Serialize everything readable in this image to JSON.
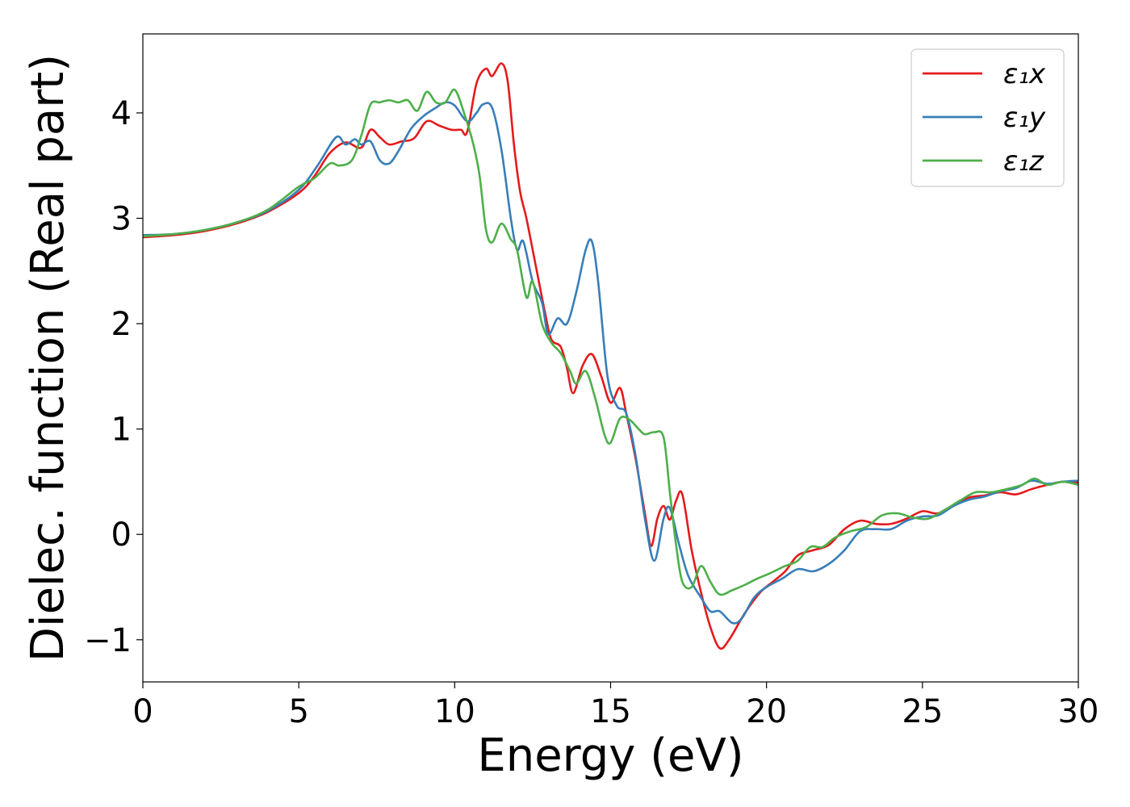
{
  "chart_data": {
    "type": "line",
    "title": "",
    "xlabel": "Energy (eV)",
    "ylabel": "Dielec. function (Real part)",
    "xlim": [
      0,
      30
    ],
    "ylim": [
      -1.4,
      4.75
    ],
    "xticks": [
      0,
      5,
      10,
      15,
      20,
      25,
      30
    ],
    "xtick_labels": [
      "0",
      "5",
      "10",
      "15",
      "20",
      "25",
      "30"
    ],
    "yticks": [
      -1,
      0,
      1,
      2,
      3,
      4
    ],
    "ytick_labels": [
      "−1",
      "0",
      "1",
      "2",
      "3",
      "4"
    ],
    "grid": false,
    "legend_position": "top-right",
    "series": [
      {
        "name": "ε₁x",
        "color": "#e41a1c",
        "points": [
          [
            0,
            2.82
          ],
          [
            1,
            2.84
          ],
          [
            2,
            2.88
          ],
          [
            3,
            2.95
          ],
          [
            4,
            3.06
          ],
          [
            5,
            3.24
          ],
          [
            5.5,
            3.4
          ],
          [
            6,
            3.62
          ],
          [
            6.5,
            3.72
          ],
          [
            7,
            3.67
          ],
          [
            7.3,
            3.84
          ],
          [
            7.6,
            3.77
          ],
          [
            7.9,
            3.7
          ],
          [
            8.3,
            3.73
          ],
          [
            8.7,
            3.76
          ],
          [
            9.1,
            3.92
          ],
          [
            9.5,
            3.88
          ],
          [
            9.9,
            3.84
          ],
          [
            10.2,
            3.84
          ],
          [
            10.4,
            3.82
          ],
          [
            10.7,
            4.28
          ],
          [
            11,
            4.42
          ],
          [
            11.2,
            4.35
          ],
          [
            11.5,
            4.47
          ],
          [
            11.7,
            4.3
          ],
          [
            11.9,
            3.7
          ],
          [
            12.1,
            3.25
          ],
          [
            12.3,
            3.0
          ],
          [
            12.6,
            2.55
          ],
          [
            12.9,
            2.1
          ],
          [
            13.1,
            1.85
          ],
          [
            13.4,
            1.78
          ],
          [
            13.6,
            1.58
          ],
          [
            13.8,
            1.34
          ],
          [
            14.1,
            1.6
          ],
          [
            14.4,
            1.71
          ],
          [
            14.7,
            1.5
          ],
          [
            15,
            1.25
          ],
          [
            15.3,
            1.39
          ],
          [
            15.5,
            1.15
          ],
          [
            15.8,
            0.72
          ],
          [
            16.1,
            0.2
          ],
          [
            16.3,
            -0.11
          ],
          [
            16.5,
            0.15
          ],
          [
            16.7,
            0.27
          ],
          [
            16.9,
            0.14
          ],
          [
            17.1,
            0.32
          ],
          [
            17.3,
            0.38
          ],
          [
            17.6,
            -0.15
          ],
          [
            17.9,
            -0.55
          ],
          [
            18.2,
            -0.88
          ],
          [
            18.5,
            -1.08
          ],
          [
            18.8,
            -1.0
          ],
          [
            19.3,
            -0.75
          ],
          [
            19.8,
            -0.55
          ],
          [
            20.2,
            -0.45
          ],
          [
            20.6,
            -0.35
          ],
          [
            21,
            -0.2
          ],
          [
            21.5,
            -0.15
          ],
          [
            22,
            -0.1
          ],
          [
            22.5,
            0.05
          ],
          [
            23,
            0.13
          ],
          [
            23.5,
            0.1
          ],
          [
            24,
            0.1
          ],
          [
            24.5,
            0.15
          ],
          [
            25,
            0.22
          ],
          [
            25.5,
            0.2
          ],
          [
            26,
            0.28
          ],
          [
            26.5,
            0.35
          ],
          [
            27,
            0.37
          ],
          [
            27.5,
            0.4
          ],
          [
            28,
            0.38
          ],
          [
            28.5,
            0.43
          ],
          [
            29,
            0.47
          ],
          [
            29.5,
            0.5
          ],
          [
            30,
            0.49
          ]
        ]
      },
      {
        "name": "ε₁y",
        "color": "#377eb8",
        "points": [
          [
            0,
            2.84
          ],
          [
            1,
            2.85
          ],
          [
            2,
            2.89
          ],
          [
            3,
            2.96
          ],
          [
            4,
            3.07
          ],
          [
            5,
            3.27
          ],
          [
            5.6,
            3.5
          ],
          [
            6.2,
            3.77
          ],
          [
            6.5,
            3.7
          ],
          [
            6.8,
            3.75
          ],
          [
            7,
            3.7
          ],
          [
            7.3,
            3.73
          ],
          [
            7.6,
            3.55
          ],
          [
            7.9,
            3.52
          ],
          [
            8.2,
            3.64
          ],
          [
            8.6,
            3.85
          ],
          [
            9,
            3.97
          ],
          [
            9.4,
            4.05
          ],
          [
            9.7,
            4.1
          ],
          [
            10,
            4.07
          ],
          [
            10.4,
            3.92
          ],
          [
            10.7,
            4.0
          ],
          [
            10.9,
            4.08
          ],
          [
            11.2,
            4.05
          ],
          [
            11.5,
            3.65
          ],
          [
            11.8,
            3.0
          ],
          [
            12,
            2.7
          ],
          [
            12.2,
            2.78
          ],
          [
            12.5,
            2.4
          ],
          [
            12.8,
            2.2
          ],
          [
            13,
            1.9
          ],
          [
            13.3,
            2.05
          ],
          [
            13.6,
            2.0
          ],
          [
            13.9,
            2.3
          ],
          [
            14.2,
            2.7
          ],
          [
            14.4,
            2.78
          ],
          [
            14.6,
            2.4
          ],
          [
            14.9,
            1.5
          ],
          [
            15.2,
            1.22
          ],
          [
            15.5,
            1.15
          ],
          [
            15.8,
            0.75
          ],
          [
            16.1,
            0.15
          ],
          [
            16.4,
            -0.25
          ],
          [
            16.7,
            0.15
          ],
          [
            16.9,
            0.25
          ],
          [
            17.2,
            -0.1
          ],
          [
            17.5,
            -0.4
          ],
          [
            17.9,
            -0.6
          ],
          [
            18.2,
            -0.73
          ],
          [
            18.5,
            -0.73
          ],
          [
            18.9,
            -0.84
          ],
          [
            19.2,
            -0.8
          ],
          [
            19.6,
            -0.6
          ],
          [
            20,
            -0.5
          ],
          [
            20.5,
            -0.42
          ],
          [
            21,
            -0.33
          ],
          [
            21.5,
            -0.35
          ],
          [
            22,
            -0.28
          ],
          [
            22.5,
            -0.15
          ],
          [
            23,
            0.03
          ],
          [
            23.5,
            0.05
          ],
          [
            24,
            0.05
          ],
          [
            24.5,
            0.13
          ],
          [
            25,
            0.17
          ],
          [
            25.5,
            0.18
          ],
          [
            26,
            0.27
          ],
          [
            26.5,
            0.33
          ],
          [
            27,
            0.36
          ],
          [
            27.5,
            0.41
          ],
          [
            28,
            0.44
          ],
          [
            28.5,
            0.51
          ],
          [
            29,
            0.48
          ],
          [
            29.5,
            0.5
          ],
          [
            30,
            0.51
          ]
        ]
      },
      {
        "name": "ε₁z",
        "color": "#4daf4a",
        "points": [
          [
            0,
            2.83
          ],
          [
            1,
            2.85
          ],
          [
            2,
            2.89
          ],
          [
            3,
            2.96
          ],
          [
            4,
            3.08
          ],
          [
            5,
            3.3
          ],
          [
            5.5,
            3.38
          ],
          [
            6,
            3.52
          ],
          [
            6.3,
            3.5
          ],
          [
            6.7,
            3.55
          ],
          [
            7,
            3.78
          ],
          [
            7.3,
            4.08
          ],
          [
            7.6,
            4.1
          ],
          [
            7.9,
            4.12
          ],
          [
            8.2,
            4.1
          ],
          [
            8.5,
            4.12
          ],
          [
            8.8,
            4.02
          ],
          [
            9.1,
            4.2
          ],
          [
            9.4,
            4.1
          ],
          [
            9.7,
            4.1
          ],
          [
            10,
            4.22
          ],
          [
            10.3,
            4.0
          ],
          [
            10.6,
            3.7
          ],
          [
            10.8,
            3.4
          ],
          [
            11,
            2.9
          ],
          [
            11.2,
            2.77
          ],
          [
            11.5,
            2.95
          ],
          [
            11.8,
            2.8
          ],
          [
            12,
            2.7
          ],
          [
            12.3,
            2.25
          ],
          [
            12.5,
            2.4
          ],
          [
            12.8,
            2.0
          ],
          [
            13.1,
            1.82
          ],
          [
            13.4,
            1.72
          ],
          [
            13.7,
            1.55
          ],
          [
            13.9,
            1.43
          ],
          [
            14.2,
            1.55
          ],
          [
            14.5,
            1.3
          ],
          [
            14.8,
            0.95
          ],
          [
            15,
            0.87
          ],
          [
            15.3,
            1.1
          ],
          [
            15.6,
            1.09
          ],
          [
            15.9,
            1.0
          ],
          [
            16.1,
            0.95
          ],
          [
            16.4,
            0.97
          ],
          [
            16.7,
            0.92
          ],
          [
            16.9,
            0.4
          ],
          [
            17.1,
            -0.1
          ],
          [
            17.3,
            -0.45
          ],
          [
            17.6,
            -0.5
          ],
          [
            17.9,
            -0.3
          ],
          [
            18.2,
            -0.45
          ],
          [
            18.5,
            -0.57
          ],
          [
            18.9,
            -0.53
          ],
          [
            19.3,
            -0.48
          ],
          [
            19.7,
            -0.42
          ],
          [
            20.1,
            -0.37
          ],
          [
            20.6,
            -0.3
          ],
          [
            21,
            -0.25
          ],
          [
            21.4,
            -0.12
          ],
          [
            21.8,
            -0.12
          ],
          [
            22.2,
            -0.03
          ],
          [
            22.7,
            0.03
          ],
          [
            23.2,
            0.07
          ],
          [
            23.7,
            0.18
          ],
          [
            24.2,
            0.2
          ],
          [
            24.7,
            0.16
          ],
          [
            25.2,
            0.15
          ],
          [
            25.7,
            0.23
          ],
          [
            26.2,
            0.32
          ],
          [
            26.7,
            0.4
          ],
          [
            27.2,
            0.4
          ],
          [
            27.7,
            0.43
          ],
          [
            28.2,
            0.47
          ],
          [
            28.6,
            0.53
          ],
          [
            29,
            0.47
          ],
          [
            29.5,
            0.5
          ],
          [
            30,
            0.47
          ]
        ]
      }
    ]
  }
}
